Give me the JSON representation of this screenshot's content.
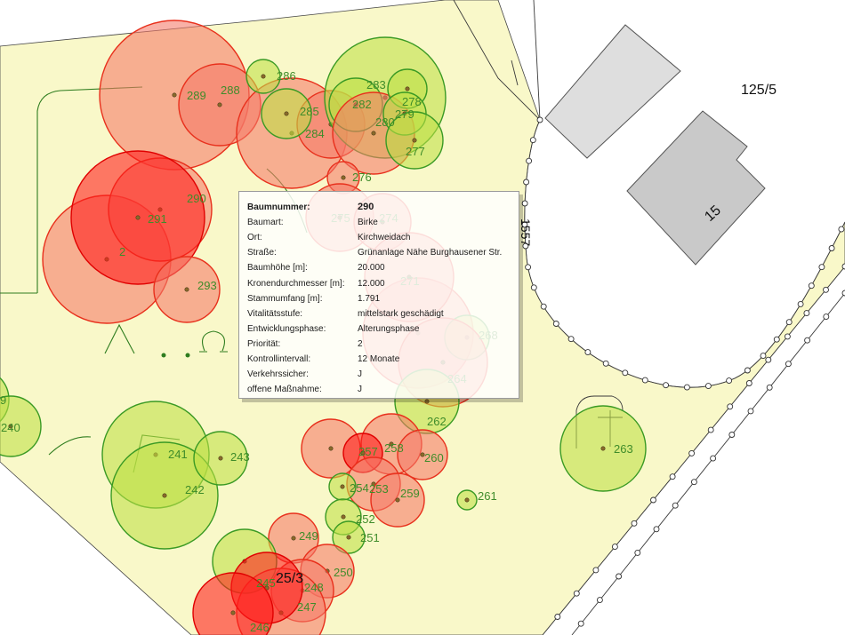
{
  "map": {
    "colors": {
      "land": "#f9f8c9",
      "land_stroke": "#444444",
      "road": "#ffffff",
      "building_a": "#dedede",
      "building_b": "#c9c9c9",
      "building_stroke": "#555555",
      "post_stroke": "#333333",
      "contour": "#2f7d1f",
      "label": "#3f8c2a",
      "trunk": "#8a6a2a"
    },
    "parcel_labels": {
      "top_right": "125/5",
      "house_number": "15",
      "bottom": "25/3",
      "fence_side": "1557"
    },
    "trees": [
      {
        "label": "289",
        "fill": "#f47868",
        "stroke": "#e8301c"
      },
      {
        "label": "288",
        "fill": "#f47868",
        "stroke": "#e8301c"
      },
      {
        "label": "284",
        "fill": "#f47868",
        "stroke": "#e8301c"
      },
      {
        "label": "",
        "fill": "#f47868",
        "stroke": "#e8301c"
      },
      {
        "label": "286",
        "fill": "#bde045",
        "stroke": "#3a9a24"
      },
      {
        "label": "285",
        "fill": "#bde045",
        "stroke": "#3a9a24"
      },
      {
        "label": "283",
        "fill": "#bde045",
        "stroke": "#3a9a24"
      },
      {
        "label": "282",
        "fill": "#bde045",
        "stroke": "#3a9a24"
      },
      {
        "label": "280",
        "fill": "#f47868",
        "stroke": "#e8301c"
      },
      {
        "label": "278",
        "fill": "#bde045",
        "stroke": "#3a9a24"
      },
      {
        "label": "279",
        "fill": "#bde045",
        "stroke": "#3a9a24"
      },
      {
        "label": "277",
        "fill": "#bde045",
        "stroke": "#3a9a24"
      },
      {
        "label": "276",
        "fill": "#f47868",
        "stroke": "#e8301c"
      },
      {
        "label": "2",
        "fill": "#f47868",
        "stroke": "#e8301c"
      },
      {
        "label": "290",
        "fill": "#f47868",
        "stroke": "#e8301c"
      },
      {
        "label": "291",
        "fill": "#ff1a1a",
        "stroke": "#e00000"
      },
      {
        "label": "293",
        "fill": "#f47868",
        "stroke": "#e8301c"
      },
      {
        "label": "275",
        "fill": "#f47868",
        "stroke": "#e8301c"
      },
      {
        "label": "274",
        "fill": "#f47868",
        "stroke": "#e8301c"
      },
      {
        "label": "",
        "fill": "#f47868",
        "stroke": "#e8301c"
      },
      {
        "label": "271",
        "fill": "#f47868",
        "stroke": "#e8301c"
      },
      {
        "label": "268",
        "fill": "#bde045",
        "stroke": "#3a9a24"
      },
      {
        "label": "264",
        "fill": "#f47868",
        "stroke": "#e8301c"
      },
      {
        "label": "262",
        "fill": "#bde045",
        "stroke": "#3a9a24"
      },
      {
        "label": "9",
        "fill": "#bde045",
        "stroke": "#3a9a24"
      },
      {
        "label": "240",
        "fill": "#bde045",
        "stroke": "#3a9a24"
      },
      {
        "label": "241",
        "fill": "#bde045",
        "stroke": "#3a9a24"
      },
      {
        "label": "242",
        "fill": "#bde045",
        "stroke": "#3a9a24"
      },
      {
        "label": "243",
        "fill": "#bde045",
        "stroke": "#3a9a24"
      },
      {
        "label": "",
        "fill": "#f47868",
        "stroke": "#e8301c"
      },
      {
        "label": "258",
        "fill": "#f47868",
        "stroke": "#e8301c"
      },
      {
        "label": "257",
        "fill": "#ff1a1a",
        "stroke": "#e00000"
      },
      {
        "label": "260",
        "fill": "#f47868",
        "stroke": "#e8301c"
      },
      {
        "label": "253",
        "fill": "#f47868",
        "stroke": "#e8301c"
      },
      {
        "label": "259",
        "fill": "#f47868",
        "stroke": "#e8301c"
      },
      {
        "label": "254",
        "fill": "#bde045",
        "stroke": "#3a9a24"
      },
      {
        "label": "261",
        "fill": "#bde045",
        "stroke": "#3a9a24"
      },
      {
        "label": "252",
        "fill": "#bde045",
        "stroke": "#3a9a24"
      },
      {
        "label": "251",
        "fill": "#bde045",
        "stroke": "#3a9a24"
      },
      {
        "label": "249",
        "fill": "#f47868",
        "stroke": "#e8301c"
      },
      {
        "label": "245",
        "fill": "#bde045",
        "stroke": "#3a9a24"
      },
      {
        "label": "250",
        "fill": "#f47868",
        "stroke": "#e8301c"
      },
      {
        "label": "248",
        "fill": "#f47868",
        "stroke": "#e8301c"
      },
      {
        "label": "247",
        "fill": "#f47868",
        "stroke": "#e8301c"
      },
      {
        "label": "",
        "fill": "#ff1a1a",
        "stroke": "#e00000"
      },
      {
        "label": "246",
        "fill": "#ff1a1a",
        "stroke": "#e00000"
      },
      {
        "label": "263",
        "fill": "#bde045",
        "stroke": "#3a9a24"
      }
    ]
  },
  "tooltip": {
    "title_label": "Baumnummer:",
    "title_value": "290",
    "rows": [
      {
        "label": "Baumart:",
        "value": "Birke"
      },
      {
        "label": "Ort:",
        "value": "Kirchweidach"
      },
      {
        "label": "Straße:",
        "value": "Grünanlage Nähe Burghausener Str."
      },
      {
        "label": "Baumhöhe [m]:",
        "value": "20.000"
      },
      {
        "label": "Kronendurchmesser [m]:",
        "value": "12.000"
      },
      {
        "label": "Stammumfang [m]:",
        "value": "1.791"
      },
      {
        "label": "Vitalitätsstufe:",
        "value": "mittelstark geschädigt"
      },
      {
        "label": "Entwicklungsphase:",
        "value": "Alterungsphase"
      },
      {
        "label": "Priorität:",
        "value": "2"
      },
      {
        "label": "Kontrollintervall:",
        "value": "12 Monate"
      },
      {
        "label": "Verkehrssicher:",
        "value": "J"
      },
      {
        "label": "offene Maßnahme:",
        "value": "J"
      }
    ]
  }
}
